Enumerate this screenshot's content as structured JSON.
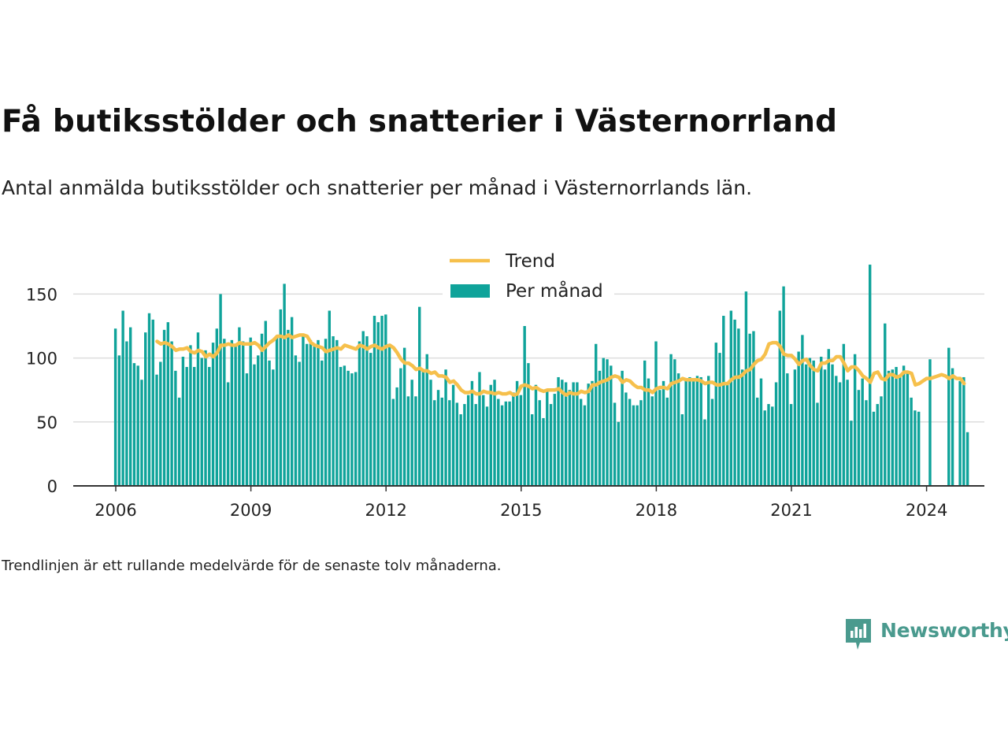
{
  "title": "Få butiksstölder och snatterier i Västernorrland",
  "subtitle": "Antal anmälda butiksstölder och snatterier per månad i Västernorrlands län.",
  "note": "Trendlinjen är ett rullande medelvärde för de senaste tolv månaderna.",
  "brand": {
    "name": "Newsworthy",
    "icon": "newsworthy-chart-bubble-icon"
  },
  "colors": {
    "bars": "#0fa39a",
    "trend": "#f6c04c",
    "grid": "#dddddd",
    "axis": "#333333",
    "text": "#222222"
  },
  "chart_data": {
    "type": "bar",
    "start_year": 2006,
    "ylim": [
      0,
      170
    ],
    "y_ticks": [
      0,
      50,
      100,
      150
    ],
    "x_ticks": [
      "2006",
      "2009",
      "2012",
      "2015",
      "2018",
      "2021",
      "2024"
    ],
    "grid": true,
    "legend_position": "top-center",
    "series": [
      {
        "name": "Per månad",
        "kind": "bar",
        "values": [
          123,
          102,
          137,
          113,
          124,
          96,
          94,
          83,
          120,
          135,
          130,
          87,
          97,
          122,
          128,
          113,
          90,
          69,
          101,
          93,
          110,
          93,
          120,
          100,
          106,
          93,
          112,
          123,
          150,
          115,
          81,
          114,
          110,
          124,
          113,
          88,
          116,
          95,
          102,
          119,
          129,
          98,
          91,
          117,
          138,
          158,
          122,
          132,
          102,
          97,
          119,
          111,
          114,
          109,
          114,
          98,
          115,
          137,
          117,
          114,
          93,
          94,
          90,
          88,
          89,
          113,
          121,
          117,
          104,
          133,
          128,
          133,
          134,
          111,
          68,
          77,
          92,
          108,
          70,
          83,
          70,
          140,
          91,
          103,
          83,
          67,
          75,
          69,
          91,
          67,
          79,
          65,
          56,
          64,
          71,
          82,
          64,
          89,
          71,
          62,
          79,
          83,
          68,
          63,
          66,
          66,
          73,
          82,
          71,
          125,
          96,
          56,
          79,
          67,
          53,
          74,
          64,
          72,
          85,
          83,
          81,
          75,
          81,
          81,
          68,
          63,
          80,
          82,
          111,
          90,
          100,
          99,
          94,
          65,
          50,
          90,
          73,
          68,
          63,
          63,
          67,
          98,
          84,
          70,
          113,
          75,
          82,
          69,
          103,
          99,
          88,
          56,
          82,
          85,
          84,
          86,
          85,
          52,
          86,
          68,
          112,
          104,
          133,
          80,
          137,
          130,
          123,
          91,
          152,
          119,
          121,
          69,
          84,
          59,
          64,
          62,
          81,
          137,
          156,
          88,
          64,
          91,
          105,
          118,
          95,
          100,
          98,
          65,
          101,
          91,
          107,
          95,
          86,
          81,
          111,
          83,
          51,
          103,
          75,
          84,
          67,
          173,
          58,
          64,
          70,
          127,
          90,
          91,
          93,
          86,
          94,
          88,
          69,
          59,
          58,
          0,
          0,
          99,
          0,
          0,
          0,
          0,
          108,
          92,
          0,
          82,
          85,
          42
        ]
      },
      {
        "name": "Trend",
        "kind": "line",
        "start_index": 11,
        "values": [
          113,
          111,
          112,
          111,
          109,
          106,
          107,
          107,
          108,
          105,
          104,
          106,
          105,
          101,
          103,
          101,
          104,
          110,
          110,
          111,
          110,
          110,
          112,
          111,
          111,
          111,
          112,
          110,
          106,
          109,
          112,
          114,
          117,
          117,
          116,
          118,
          116,
          117,
          118,
          118,
          117,
          112,
          110,
          109,
          108,
          105,
          106,
          107,
          108,
          107,
          110,
          109,
          108,
          107,
          110,
          109,
          107,
          109,
          110,
          108,
          107,
          109,
          110,
          108,
          104,
          99,
          96,
          96,
          94,
          91,
          92,
          90,
          90,
          88,
          89,
          86,
          86,
          85,
          81,
          82,
          79,
          75,
          73,
          73,
          74,
          72,
          72,
          74,
          73,
          73,
          72,
          73,
          72,
          72,
          73,
          71,
          72,
          78,
          79,
          78,
          76,
          77,
          75,
          74,
          75,
          75,
          75,
          76,
          73,
          71,
          73,
          72,
          72,
          74,
          73,
          74,
          79,
          79,
          81,
          82,
          83,
          85,
          86,
          85,
          81,
          83,
          82,
          79,
          77,
          77,
          75,
          75,
          73,
          76,
          77,
          77,
          76,
          80,
          81,
          82,
          84,
          83,
          83,
          83,
          83,
          82,
          80,
          81,
          81,
          79,
          79,
          80,
          80,
          83,
          85,
          85,
          87,
          90,
          91,
          95,
          98,
          99,
          103,
          111,
          112,
          112,
          109,
          103,
          102,
          102,
          99,
          95,
          98,
          99,
          94,
          91,
          90,
          96,
          96,
          98,
          98,
          101,
          101,
          96,
          90,
          93,
          93,
          90,
          86,
          84,
          81,
          88,
          89,
          84,
          83,
          87,
          87,
          85,
          86,
          89,
          89,
          88,
          79,
          80,
          82,
          84,
          84,
          85,
          86,
          87,
          86,
          84,
          86,
          84,
          84,
          80
        ]
      }
    ]
  }
}
